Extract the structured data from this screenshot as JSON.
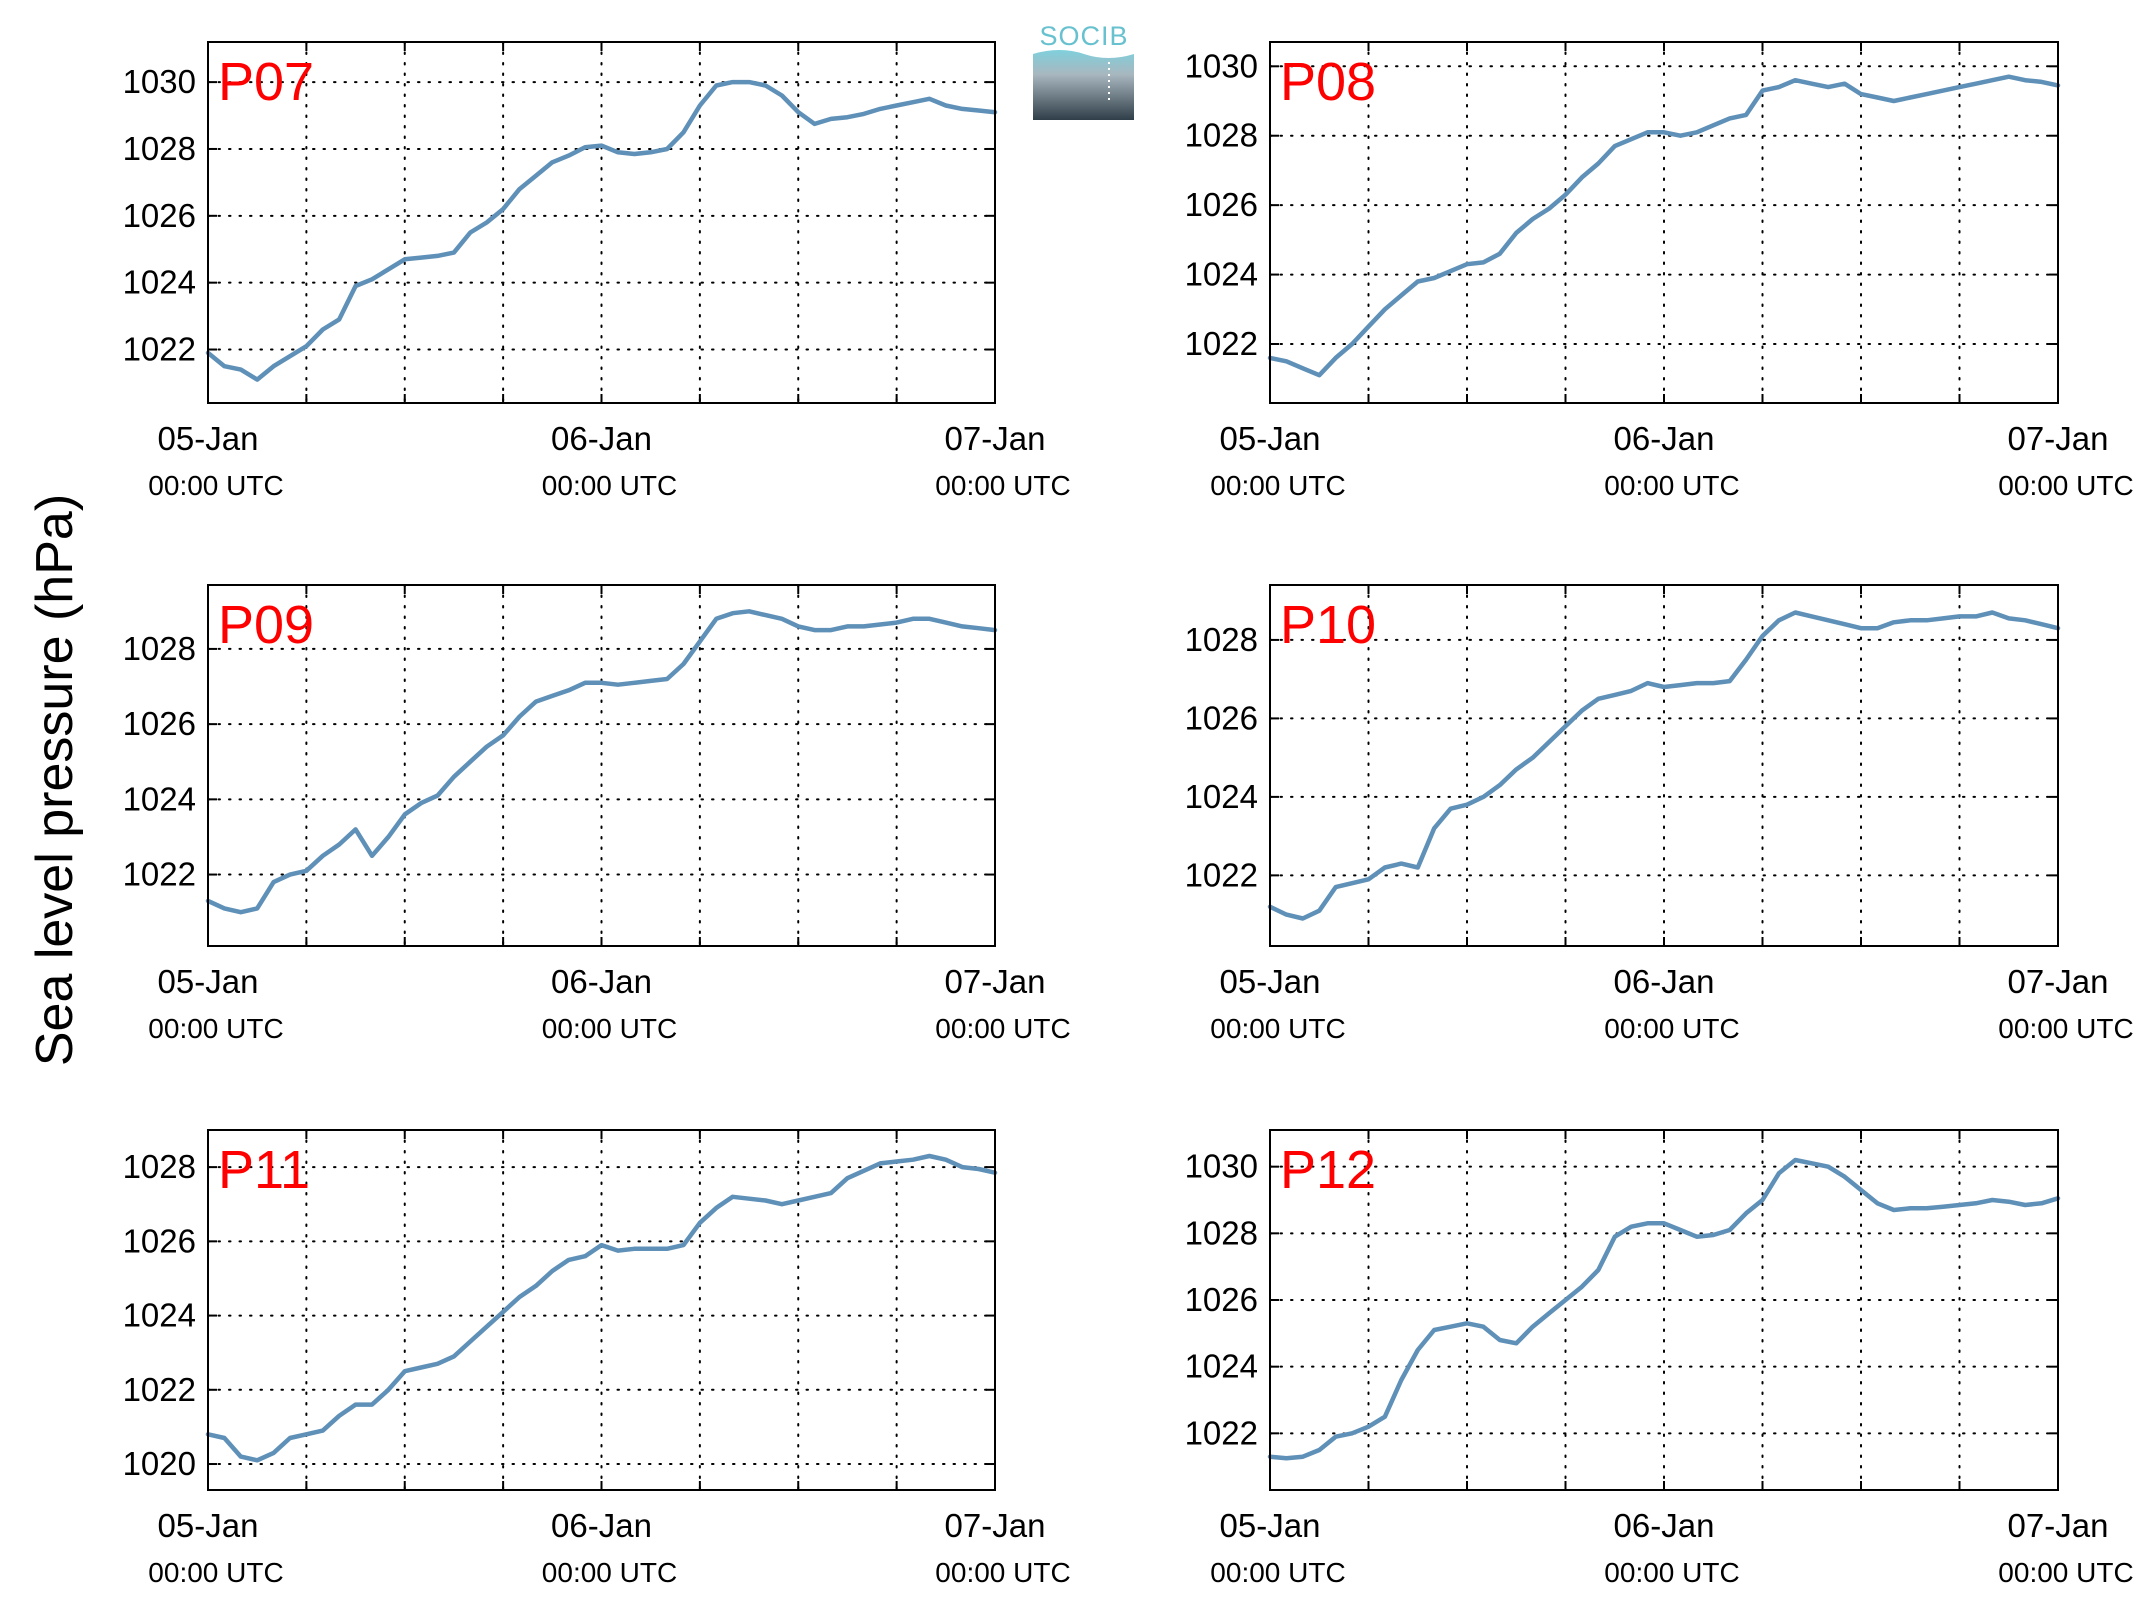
{
  "figure": {
    "ylabel": "Sea level pressure (hPa)",
    "logo_text": "SOCIB",
    "line_color": "#5f90b8",
    "label_color": "#ff0000",
    "grid": "dotted"
  },
  "chart_data": [
    {
      "type": "line",
      "panel_label": "P07",
      "x_unit": "hours since 05-Jan 00:00 UTC",
      "xlim": [
        0,
        48
      ],
      "ylim": [
        1020.4,
        1031.2
      ],
      "yticks": [
        1022,
        1024,
        1026,
        1028,
        1030
      ],
      "xtick_labels": [
        {
          "date": "05-Jan",
          "time": "00:00 UTC"
        },
        {
          "date": "06-Jan",
          "time": "00:00 UTC"
        },
        {
          "date": "07-Jan",
          "time": "00:00 UTC"
        }
      ],
      "series": [
        {
          "x": [
            0,
            1,
            2,
            3,
            4,
            5,
            6,
            7,
            8,
            9,
            10,
            11,
            12,
            13,
            14,
            15,
            16,
            17,
            18,
            19,
            20,
            21,
            22,
            23,
            24,
            25,
            26,
            27,
            28,
            29,
            30,
            31,
            32,
            33,
            34,
            35,
            36,
            37,
            38,
            39,
            40,
            41,
            42,
            43,
            44,
            45,
            46,
            47,
            48
          ],
          "values": [
            1021.9,
            1021.5,
            1021.4,
            1021.1,
            1021.5,
            1021.8,
            1022.1,
            1022.6,
            1022.9,
            1023.9,
            1024.1,
            1024.4,
            1024.7,
            1024.75,
            1024.8,
            1024.9,
            1025.5,
            1025.8,
            1026.2,
            1026.8,
            1027.2,
            1027.6,
            1027.8,
            1028.05,
            1028.1,
            1027.9,
            1027.85,
            1027.9,
            1028.0,
            1028.5,
            1029.3,
            1029.9,
            1030.0,
            1030.0,
            1029.9,
            1029.6,
            1029.1,
            1028.75,
            1028.9,
            1028.95,
            1029.05,
            1029.2,
            1029.3,
            1029.4,
            1029.5,
            1029.3,
            1029.2,
            1029.15,
            1029.1
          ]
        }
      ]
    },
    {
      "type": "line",
      "panel_label": "P08",
      "x_unit": "hours since 05-Jan 00:00 UTC",
      "xlim": [
        0,
        48
      ],
      "ylim": [
        1020.3,
        1030.7
      ],
      "yticks": [
        1022,
        1024,
        1026,
        1028,
        1030
      ],
      "xtick_labels": [
        {
          "date": "05-Jan",
          "time": "00:00 UTC"
        },
        {
          "date": "06-Jan",
          "time": "00:00 UTC"
        },
        {
          "date": "07-Jan",
          "time": "00:00 UTC"
        }
      ],
      "series": [
        {
          "x": [
            0,
            1,
            2,
            3,
            4,
            5,
            6,
            7,
            8,
            9,
            10,
            11,
            12,
            13,
            14,
            15,
            16,
            17,
            18,
            19,
            20,
            21,
            22,
            23,
            24,
            25,
            26,
            27,
            28,
            29,
            30,
            31,
            32,
            33,
            34,
            35,
            36,
            37,
            38,
            39,
            40,
            41,
            42,
            43,
            44,
            45,
            46,
            47,
            48
          ],
          "values": [
            1021.6,
            1021.5,
            1021.3,
            1021.1,
            1021.6,
            1022.0,
            1022.5,
            1023.0,
            1023.4,
            1023.8,
            1023.9,
            1024.1,
            1024.3,
            1024.35,
            1024.6,
            1025.2,
            1025.6,
            1025.9,
            1026.3,
            1026.8,
            1027.2,
            1027.7,
            1027.9,
            1028.1,
            1028.1,
            1028.0,
            1028.1,
            1028.3,
            1028.5,
            1028.6,
            1029.3,
            1029.4,
            1029.6,
            1029.5,
            1029.4,
            1029.5,
            1029.2,
            1029.1,
            1029.0,
            1029.1,
            1029.2,
            1029.3,
            1029.4,
            1029.5,
            1029.6,
            1029.7,
            1029.6,
            1029.55,
            1029.45
          ]
        }
      ]
    },
    {
      "type": "line",
      "panel_label": "P09",
      "x_unit": "hours since 05-Jan 00:00 UTC",
      "xlim": [
        0,
        48
      ],
      "ylim": [
        1020.1,
        1029.7
      ],
      "yticks": [
        1022,
        1024,
        1026,
        1028
      ],
      "xtick_labels": [
        {
          "date": "05-Jan",
          "time": "00:00 UTC"
        },
        {
          "date": "06-Jan",
          "time": "00:00 UTC"
        },
        {
          "date": "07-Jan",
          "time": "00:00 UTC"
        }
      ],
      "series": [
        {
          "x": [
            0,
            1,
            2,
            3,
            4,
            5,
            6,
            7,
            8,
            9,
            10,
            11,
            12,
            13,
            14,
            15,
            16,
            17,
            18,
            19,
            20,
            21,
            22,
            23,
            24,
            25,
            26,
            27,
            28,
            29,
            30,
            31,
            32,
            33,
            34,
            35,
            36,
            37,
            38,
            39,
            40,
            41,
            42,
            43,
            44,
            45,
            46,
            47,
            48
          ],
          "values": [
            1021.3,
            1021.1,
            1021.0,
            1021.1,
            1021.8,
            1022.0,
            1022.1,
            1022.5,
            1022.8,
            1023.2,
            1022.5,
            1023.0,
            1023.6,
            1023.9,
            1024.1,
            1024.6,
            1025.0,
            1025.4,
            1025.7,
            1026.2,
            1026.6,
            1026.75,
            1026.9,
            1027.1,
            1027.1,
            1027.05,
            1027.1,
            1027.15,
            1027.2,
            1027.6,
            1028.2,
            1028.8,
            1028.95,
            1029.0,
            1028.9,
            1028.8,
            1028.6,
            1028.5,
            1028.5,
            1028.6,
            1028.6,
            1028.65,
            1028.7,
            1028.8,
            1028.8,
            1028.7,
            1028.6,
            1028.55,
            1028.5
          ]
        }
      ]
    },
    {
      "type": "line",
      "panel_label": "P10",
      "x_unit": "hours since 05-Jan 00:00 UTC",
      "xlim": [
        0,
        48
      ],
      "ylim": [
        1020.2,
        1029.4
      ],
      "yticks": [
        1022,
        1024,
        1026,
        1028
      ],
      "xtick_labels": [
        {
          "date": "05-Jan",
          "time": "00:00 UTC"
        },
        {
          "date": "06-Jan",
          "time": "00:00 UTC"
        },
        {
          "date": "07-Jan",
          "time": "00:00 UTC"
        }
      ],
      "series": [
        {
          "x": [
            0,
            1,
            2,
            3,
            4,
            5,
            6,
            7,
            8,
            9,
            10,
            11,
            12,
            13,
            14,
            15,
            16,
            17,
            18,
            19,
            20,
            21,
            22,
            23,
            24,
            25,
            26,
            27,
            28,
            29,
            30,
            31,
            32,
            33,
            34,
            35,
            36,
            37,
            38,
            39,
            40,
            41,
            42,
            43,
            44,
            45,
            46,
            47,
            48
          ],
          "values": [
            1021.2,
            1021.0,
            1020.9,
            1021.1,
            1021.7,
            1021.8,
            1021.9,
            1022.2,
            1022.3,
            1022.2,
            1023.2,
            1023.7,
            1023.8,
            1024.0,
            1024.3,
            1024.7,
            1025.0,
            1025.4,
            1025.8,
            1026.2,
            1026.5,
            1026.6,
            1026.7,
            1026.9,
            1026.8,
            1026.85,
            1026.9,
            1026.9,
            1026.95,
            1027.5,
            1028.1,
            1028.5,
            1028.7,
            1028.6,
            1028.5,
            1028.4,
            1028.3,
            1028.3,
            1028.45,
            1028.5,
            1028.5,
            1028.55,
            1028.6,
            1028.6,
            1028.7,
            1028.55,
            1028.5,
            1028.4,
            1028.3
          ]
        }
      ]
    },
    {
      "type": "line",
      "panel_label": "P11",
      "x_unit": "hours since 05-Jan 00:00 UTC",
      "xlim": [
        0,
        48
      ],
      "ylim": [
        1019.3,
        1029.0
      ],
      "yticks": [
        1020,
        1022,
        1024,
        1026,
        1028
      ],
      "xtick_labels": [
        {
          "date": "05-Jan",
          "time": "00:00 UTC"
        },
        {
          "date": "06-Jan",
          "time": "00:00 UTC"
        },
        {
          "date": "07-Jan",
          "time": "00:00 UTC"
        }
      ],
      "series": [
        {
          "x": [
            0,
            1,
            2,
            3,
            4,
            5,
            6,
            7,
            8,
            9,
            10,
            11,
            12,
            13,
            14,
            15,
            16,
            17,
            18,
            19,
            20,
            21,
            22,
            23,
            24,
            25,
            26,
            27,
            28,
            29,
            30,
            31,
            32,
            33,
            34,
            35,
            36,
            37,
            38,
            39,
            40,
            41,
            42,
            43,
            44,
            45,
            46,
            47,
            48
          ],
          "values": [
            1020.8,
            1020.7,
            1020.2,
            1020.1,
            1020.3,
            1020.7,
            1020.8,
            1020.9,
            1021.3,
            1021.6,
            1021.6,
            1022.0,
            1022.5,
            1022.6,
            1022.7,
            1022.9,
            1023.3,
            1023.7,
            1024.1,
            1024.5,
            1024.8,
            1025.2,
            1025.5,
            1025.6,
            1025.9,
            1025.75,
            1025.8,
            1025.8,
            1025.8,
            1025.9,
            1026.5,
            1026.9,
            1027.2,
            1027.15,
            1027.1,
            1027.0,
            1027.1,
            1027.2,
            1027.3,
            1027.7,
            1027.9,
            1028.1,
            1028.15,
            1028.2,
            1028.3,
            1028.2,
            1028.0,
            1027.95,
            1027.85
          ]
        }
      ]
    },
    {
      "type": "line",
      "panel_label": "P12",
      "x_unit": "hours since 05-Jan 00:00 UTC",
      "xlim": [
        0,
        48
      ],
      "ylim": [
        1020.3,
        1031.1
      ],
      "yticks": [
        1022,
        1024,
        1026,
        1028,
        1030
      ],
      "xtick_labels": [
        {
          "date": "05-Jan",
          "time": "00:00 UTC"
        },
        {
          "date": "06-Jan",
          "time": "00:00 UTC"
        },
        {
          "date": "07-Jan",
          "time": "00:00 UTC"
        }
      ],
      "series": [
        {
          "x": [
            0,
            1,
            2,
            3,
            4,
            5,
            6,
            7,
            8,
            9,
            10,
            11,
            12,
            13,
            14,
            15,
            16,
            17,
            18,
            19,
            20,
            21,
            22,
            23,
            24,
            25,
            26,
            27,
            28,
            29,
            30,
            31,
            32,
            33,
            34,
            35,
            36,
            37,
            38,
            39,
            40,
            41,
            42,
            43,
            44,
            45,
            46,
            47,
            48
          ],
          "values": [
            1021.3,
            1021.25,
            1021.3,
            1021.5,
            1021.9,
            1022.0,
            1022.2,
            1022.5,
            1023.6,
            1024.5,
            1025.1,
            1025.2,
            1025.3,
            1025.2,
            1024.8,
            1024.7,
            1025.2,
            1025.6,
            1026.0,
            1026.4,
            1026.9,
            1027.9,
            1028.2,
            1028.3,
            1028.3,
            1028.1,
            1027.9,
            1027.95,
            1028.1,
            1028.6,
            1029.0,
            1029.8,
            1030.2,
            1030.1,
            1030.0,
            1029.7,
            1029.3,
            1028.9,
            1028.7,
            1028.75,
            1028.75,
            1028.8,
            1028.85,
            1028.9,
            1029.0,
            1028.95,
            1028.85,
            1028.9,
            1029.05
          ]
        }
      ]
    }
  ]
}
